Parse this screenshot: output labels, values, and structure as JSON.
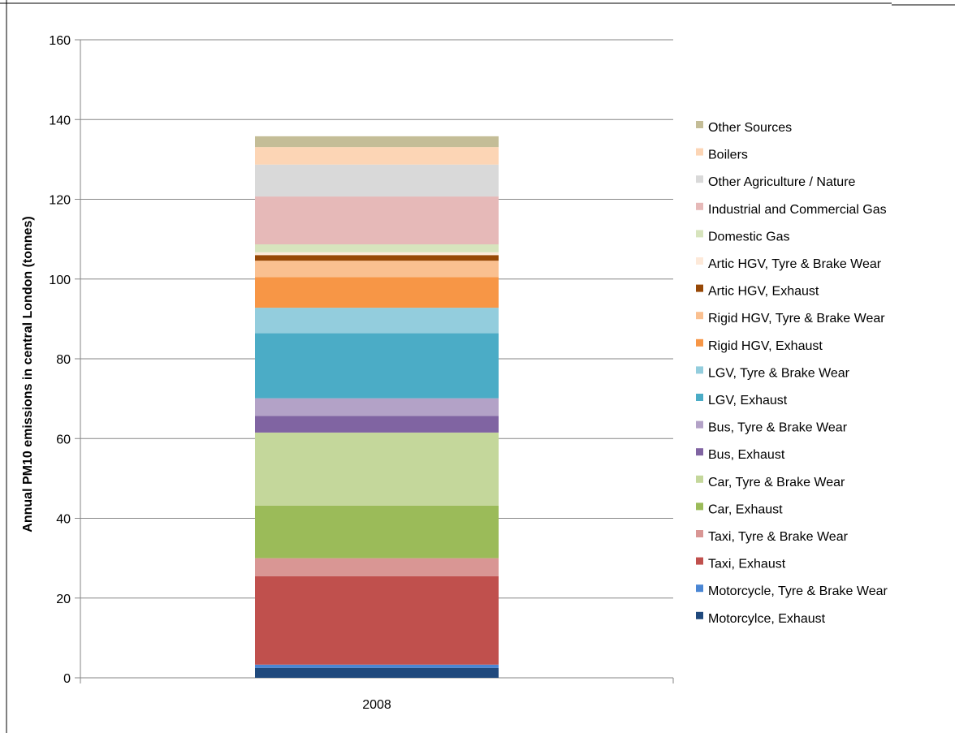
{
  "chart_data": {
    "type": "bar",
    "stacked": true,
    "categories": [
      "2008"
    ],
    "ylabel": "Annual PM10 emissions in central London (tonnes)",
    "xlabel": "",
    "ylim": [
      0,
      160
    ],
    "yticks": [
      0,
      20,
      40,
      60,
      80,
      100,
      120,
      140,
      160
    ],
    "grid": true,
    "legend_position": "right",
    "series": [
      {
        "name": "Motorcylce, Exhaust",
        "values": [
          2.5
        ],
        "color": "#1f497d"
      },
      {
        "name": "Motorcycle, Tyre & Brake Wear",
        "values": [
          0.8
        ],
        "color": "#4a86d4"
      },
      {
        "name": "Taxi, Exhaust",
        "values": [
          22.2
        ],
        "color": "#c0504d"
      },
      {
        "name": "Taxi, Tyre & Brake Wear",
        "values": [
          4.5
        ],
        "color": "#d99694"
      },
      {
        "name": "Car, Exhaust",
        "values": [
          13.2
        ],
        "color": "#9bbb59"
      },
      {
        "name": "Car, Tyre & Brake Wear",
        "values": [
          18.3
        ],
        "color": "#c4d79b"
      },
      {
        "name": "Bus, Exhaust",
        "values": [
          4.2
        ],
        "color": "#8064a2"
      },
      {
        "name": "Bus, Tyre & Brake Wear",
        "values": [
          4.4
        ],
        "color": "#b3a2c7"
      },
      {
        "name": "LGV, Exhaust",
        "values": [
          16.3
        ],
        "color": "#4bacc6"
      },
      {
        "name": "LGV, Tyre & Brake Wear",
        "values": [
          6.4
        ],
        "color": "#93cddd"
      },
      {
        "name": "Rigid HGV, Exhaust",
        "values": [
          7.7
        ],
        "color": "#f79646"
      },
      {
        "name": "Rigid HGV, Tyre & Brake Wear",
        "values": [
          4.1
        ],
        "color": "#fac090"
      },
      {
        "name": "Artic HGV, Exhaust",
        "values": [
          1.4
        ],
        "color": "#974806"
      },
      {
        "name": "Artic HGV, Tyre & Brake Wear",
        "values": [
          0.7
        ],
        "color": "#fde9d9"
      },
      {
        "name": "Domestic Gas",
        "values": [
          2.0
        ],
        "color": "#d7e4bd"
      },
      {
        "name": "Industrial and Commercial Gas",
        "values": [
          12.0
        ],
        "color": "#e6b9b8"
      },
      {
        "name": "Other Agriculture / Nature",
        "values": [
          8.0
        ],
        "color": "#d9d9d9"
      },
      {
        "name": "Boilers",
        "values": [
          4.4
        ],
        "color": "#fcd5b5"
      },
      {
        "name": "Other Sources",
        "values": [
          2.7
        ],
        "color": "#c4bd97"
      }
    ]
  }
}
